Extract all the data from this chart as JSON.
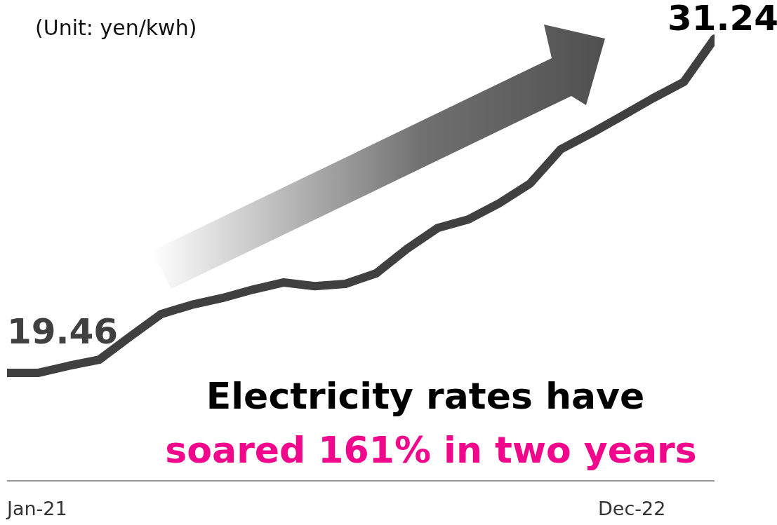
{
  "chart_data": {
    "type": "line",
    "categories": [
      null,
      null,
      null,
      null,
      null,
      null,
      null,
      null,
      null,
      null,
      null,
      null,
      null,
      null,
      null,
      null,
      null,
      null,
      null,
      null,
      null,
      null,
      null,
      null
    ],
    "values": [
      19.46,
      19.46,
      19.71,
      19.93,
      20.74,
      21.53,
      21.86,
      22.1,
      22.4,
      22.65,
      22.52,
      22.6,
      22.97,
      23.83,
      24.57,
      24.87,
      25.44,
      26.13,
      27.34,
      27.91,
      28.52,
      29.14,
      29.71,
      31.24
    ],
    "value_labels": [
      "19.46",
      null,
      null,
      null,
      null,
      null,
      null,
      null,
      null,
      null,
      null,
      null,
      null,
      null,
      null,
      null,
      null,
      null,
      null,
      null,
      null,
      null,
      null,
      "31.24"
    ],
    "color": "#404040",
    "marker": "none",
    "ylim": [
      15.66,
      32.6
    ],
    "annotations": [
      "(Unit: yen/kwh)",
      "Electricity rates have",
      "soared 161% in two years",
      "Jan-21",
      "Dec-22"
    ]
  }
}
